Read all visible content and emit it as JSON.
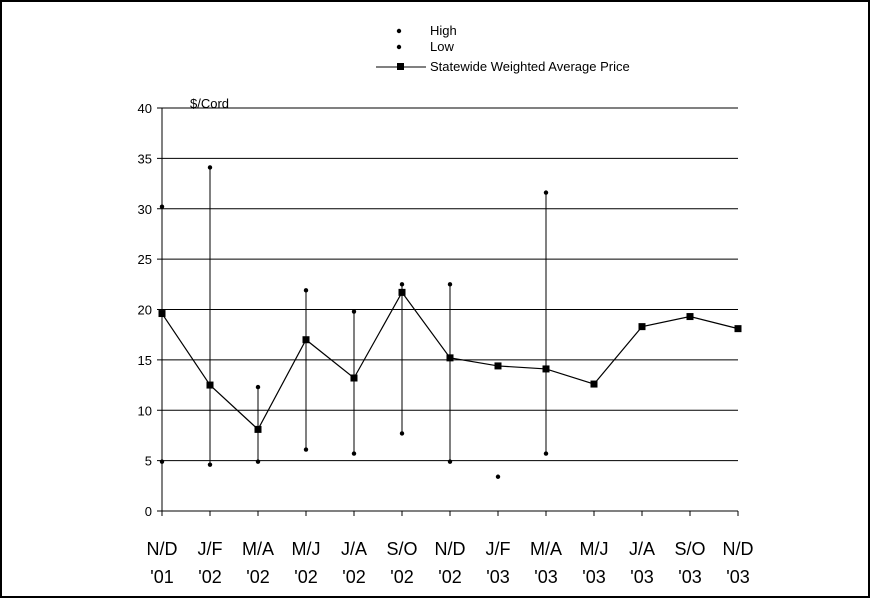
{
  "chart_data": {
    "type": "line",
    "ylabel": "$/Cord",
    "ylim": [
      0,
      40
    ],
    "yticks": [
      0,
      5,
      10,
      15,
      20,
      25,
      30,
      35,
      40
    ],
    "grid": true,
    "legend_position": "top-center",
    "categories": [
      [
        "N/D",
        "'01"
      ],
      [
        "J/F",
        "'02"
      ],
      [
        "M/A",
        "'02"
      ],
      [
        "M/J",
        "'02"
      ],
      [
        "J/A",
        "'02"
      ],
      [
        "S/O",
        "'02"
      ],
      [
        "N/D",
        "'02"
      ],
      [
        "J/F",
        "'03"
      ],
      [
        "M/A",
        "'03"
      ],
      [
        "M/J",
        "'03"
      ],
      [
        "J/A",
        "'03"
      ],
      [
        "S/O",
        "'03"
      ],
      [
        "N/D",
        "'03"
      ]
    ],
    "series": [
      {
        "name": "High",
        "marker": "dot",
        "values": [
          30.2,
          34.1,
          12.3,
          21.9,
          19.8,
          22.5,
          22.5,
          null,
          31.6,
          null,
          null,
          null,
          null
        ]
      },
      {
        "name": "Low",
        "marker": "dot",
        "values": [
          4.9,
          4.6,
          4.9,
          6.1,
          5.7,
          7.7,
          4.9,
          3.4,
          5.7,
          null,
          null,
          null,
          null
        ]
      },
      {
        "name": "Statewide Weighted Average Price",
        "marker": "square",
        "line": true,
        "values": [
          19.6,
          12.5,
          8.1,
          17.0,
          13.2,
          21.7,
          15.2,
          14.4,
          14.1,
          12.6,
          18.3,
          19.3,
          18.1
        ]
      }
    ],
    "colors": {
      "line": "#000000",
      "grid": "#000000",
      "marker": "#000000"
    }
  }
}
